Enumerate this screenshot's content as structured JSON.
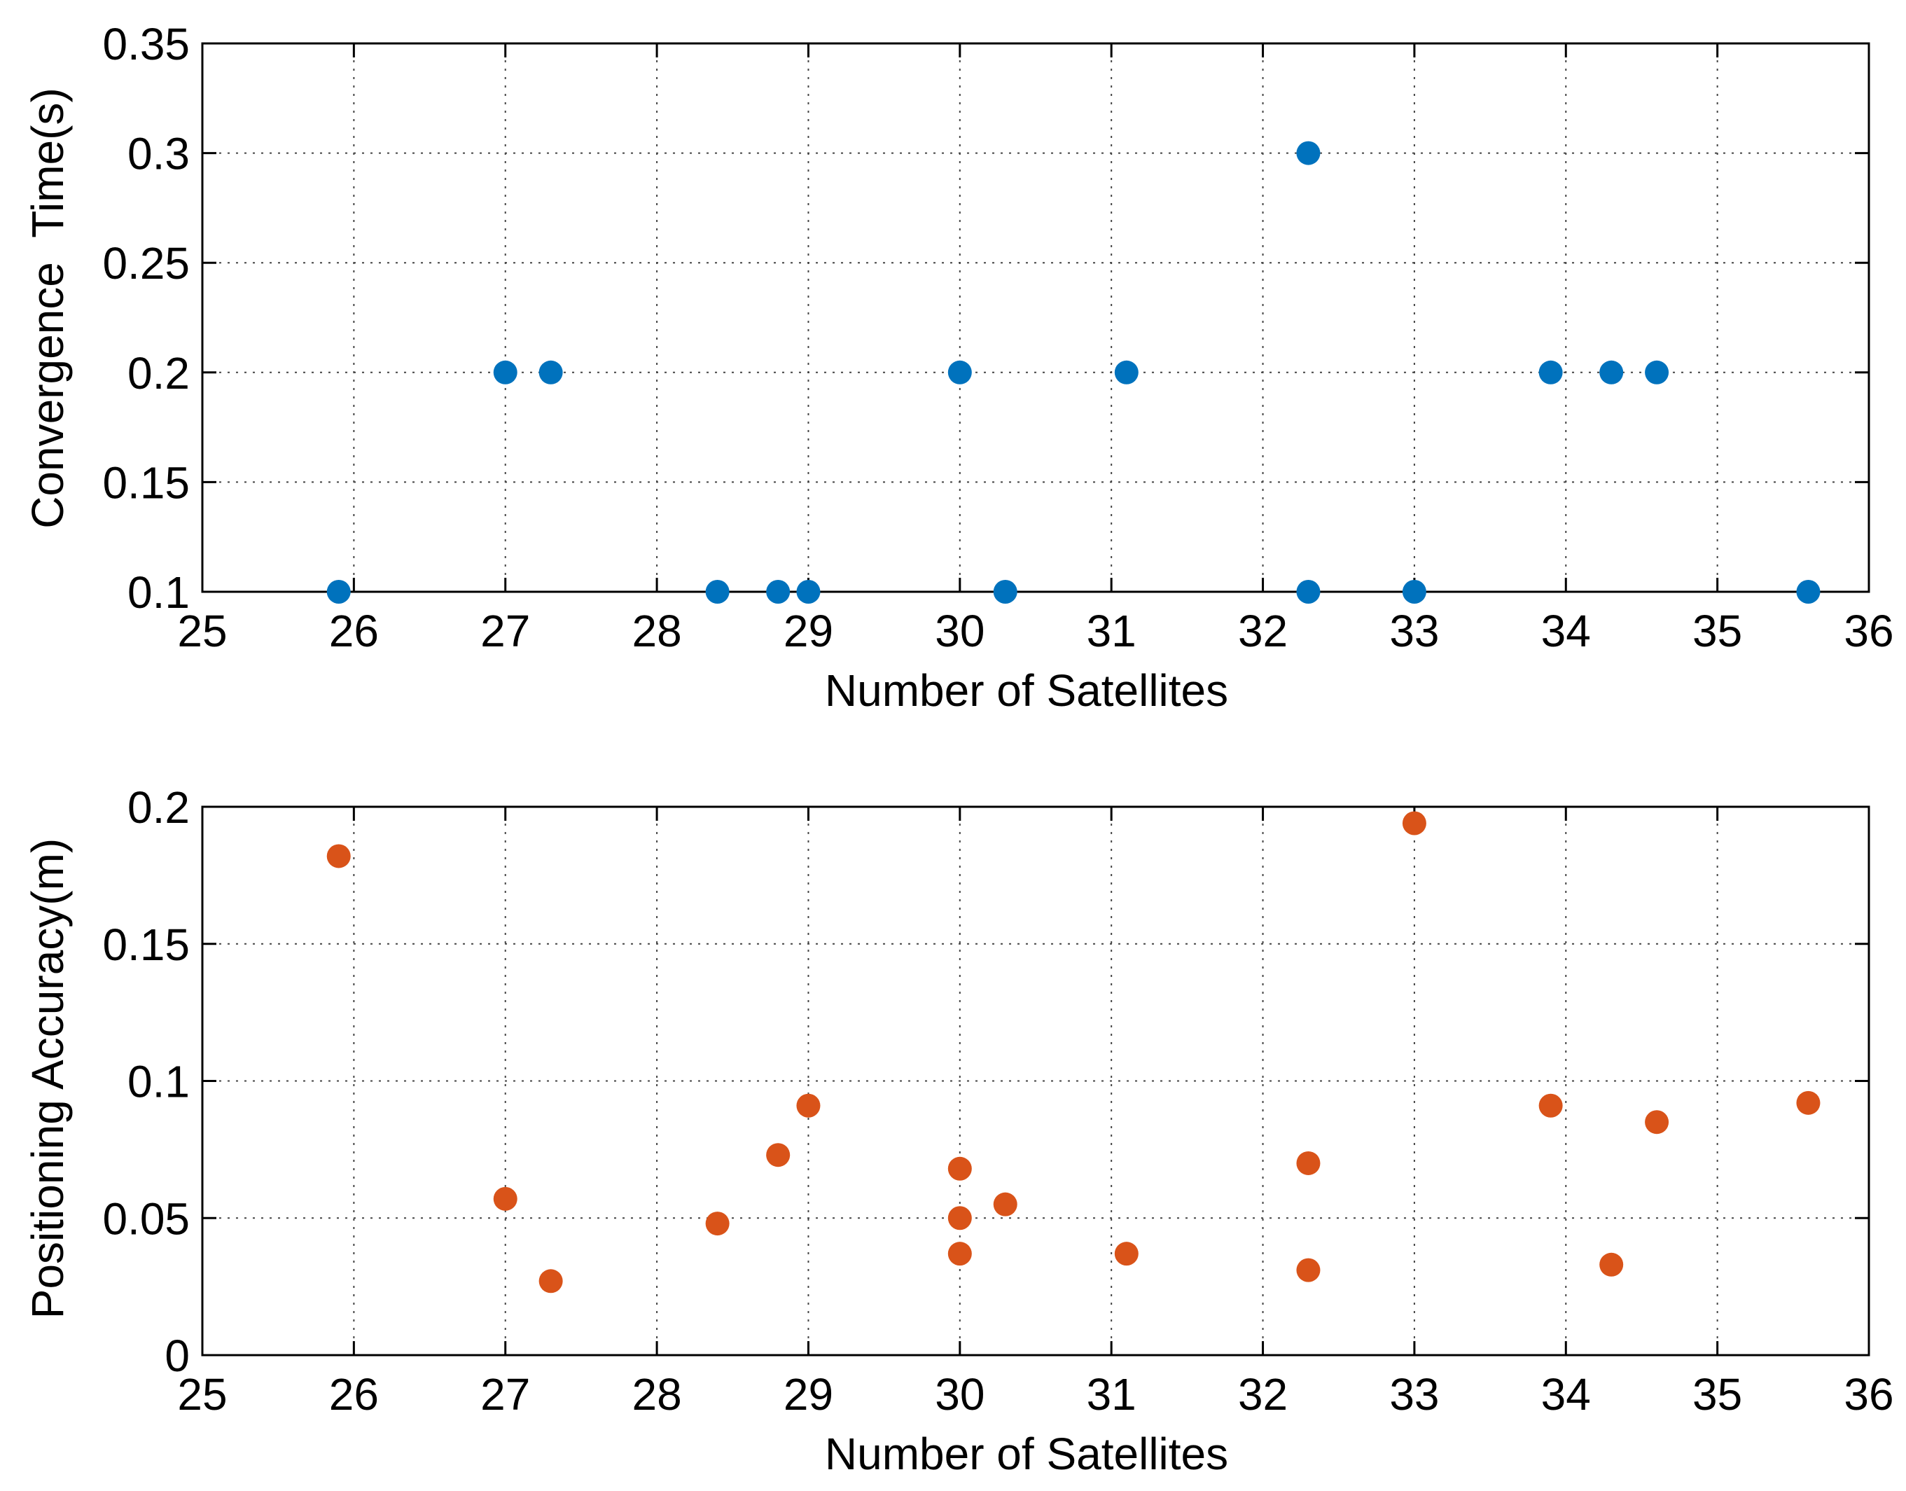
{
  "chart_data": [
    {
      "type": "scatter",
      "title": "",
      "xlabel": "Number of Satellites",
      "ylabel": "Convergence  Time(s)",
      "xlim": [
        25,
        36
      ],
      "ylim": [
        0.1,
        0.35
      ],
      "xticks": [
        25,
        26,
        27,
        28,
        29,
        30,
        31,
        32,
        33,
        34,
        35,
        36
      ],
      "yticks": [
        "0.1",
        "0.15",
        "0.2",
        "0.25",
        "0.3",
        "0.35"
      ],
      "grid": true,
      "color": "#0072BD",
      "series": [
        {
          "name": "Convergence Time",
          "x": [
            25.9,
            27,
            27.3,
            28.4,
            28.8,
            29,
            30,
            30.3,
            31.1,
            32.3,
            32.3,
            33,
            33.9,
            34.3,
            34.6,
            35.6
          ],
          "y": [
            0.1,
            0.2,
            0.2,
            0.1,
            0.1,
            0.1,
            0.2,
            0.1,
            0.2,
            0.3,
            0.1,
            0.1,
            0.2,
            0.2,
            0.2,
            0.1
          ]
        }
      ]
    },
    {
      "type": "scatter",
      "title": "",
      "xlabel": "Number of Satellites",
      "ylabel": "Positioning Accuracy(m)",
      "xlim": [
        25,
        36
      ],
      "ylim": [
        0,
        0.2
      ],
      "xticks": [
        25,
        26,
        27,
        28,
        29,
        30,
        31,
        32,
        33,
        34,
        35,
        36
      ],
      "yticks": [
        "0",
        "0.05",
        "0.1",
        "0.15",
        "0.2"
      ],
      "grid": true,
      "color": "#D95319",
      "series": [
        {
          "name": "Positioning Accuracy",
          "x": [
            25.9,
            27,
            27.3,
            28.4,
            28.8,
            29,
            30,
            30,
            30,
            30.3,
            31.1,
            32.3,
            32.3,
            33,
            33.9,
            34.3,
            34.6,
            35.6
          ],
          "y": [
            0.182,
            0.057,
            0.027,
            0.048,
            0.073,
            0.091,
            0.068,
            0.05,
            0.037,
            0.055,
            0.037,
            0.07,
            0.031,
            0.194,
            0.091,
            0.033,
            0.085,
            0.092
          ]
        }
      ]
    }
  ]
}
